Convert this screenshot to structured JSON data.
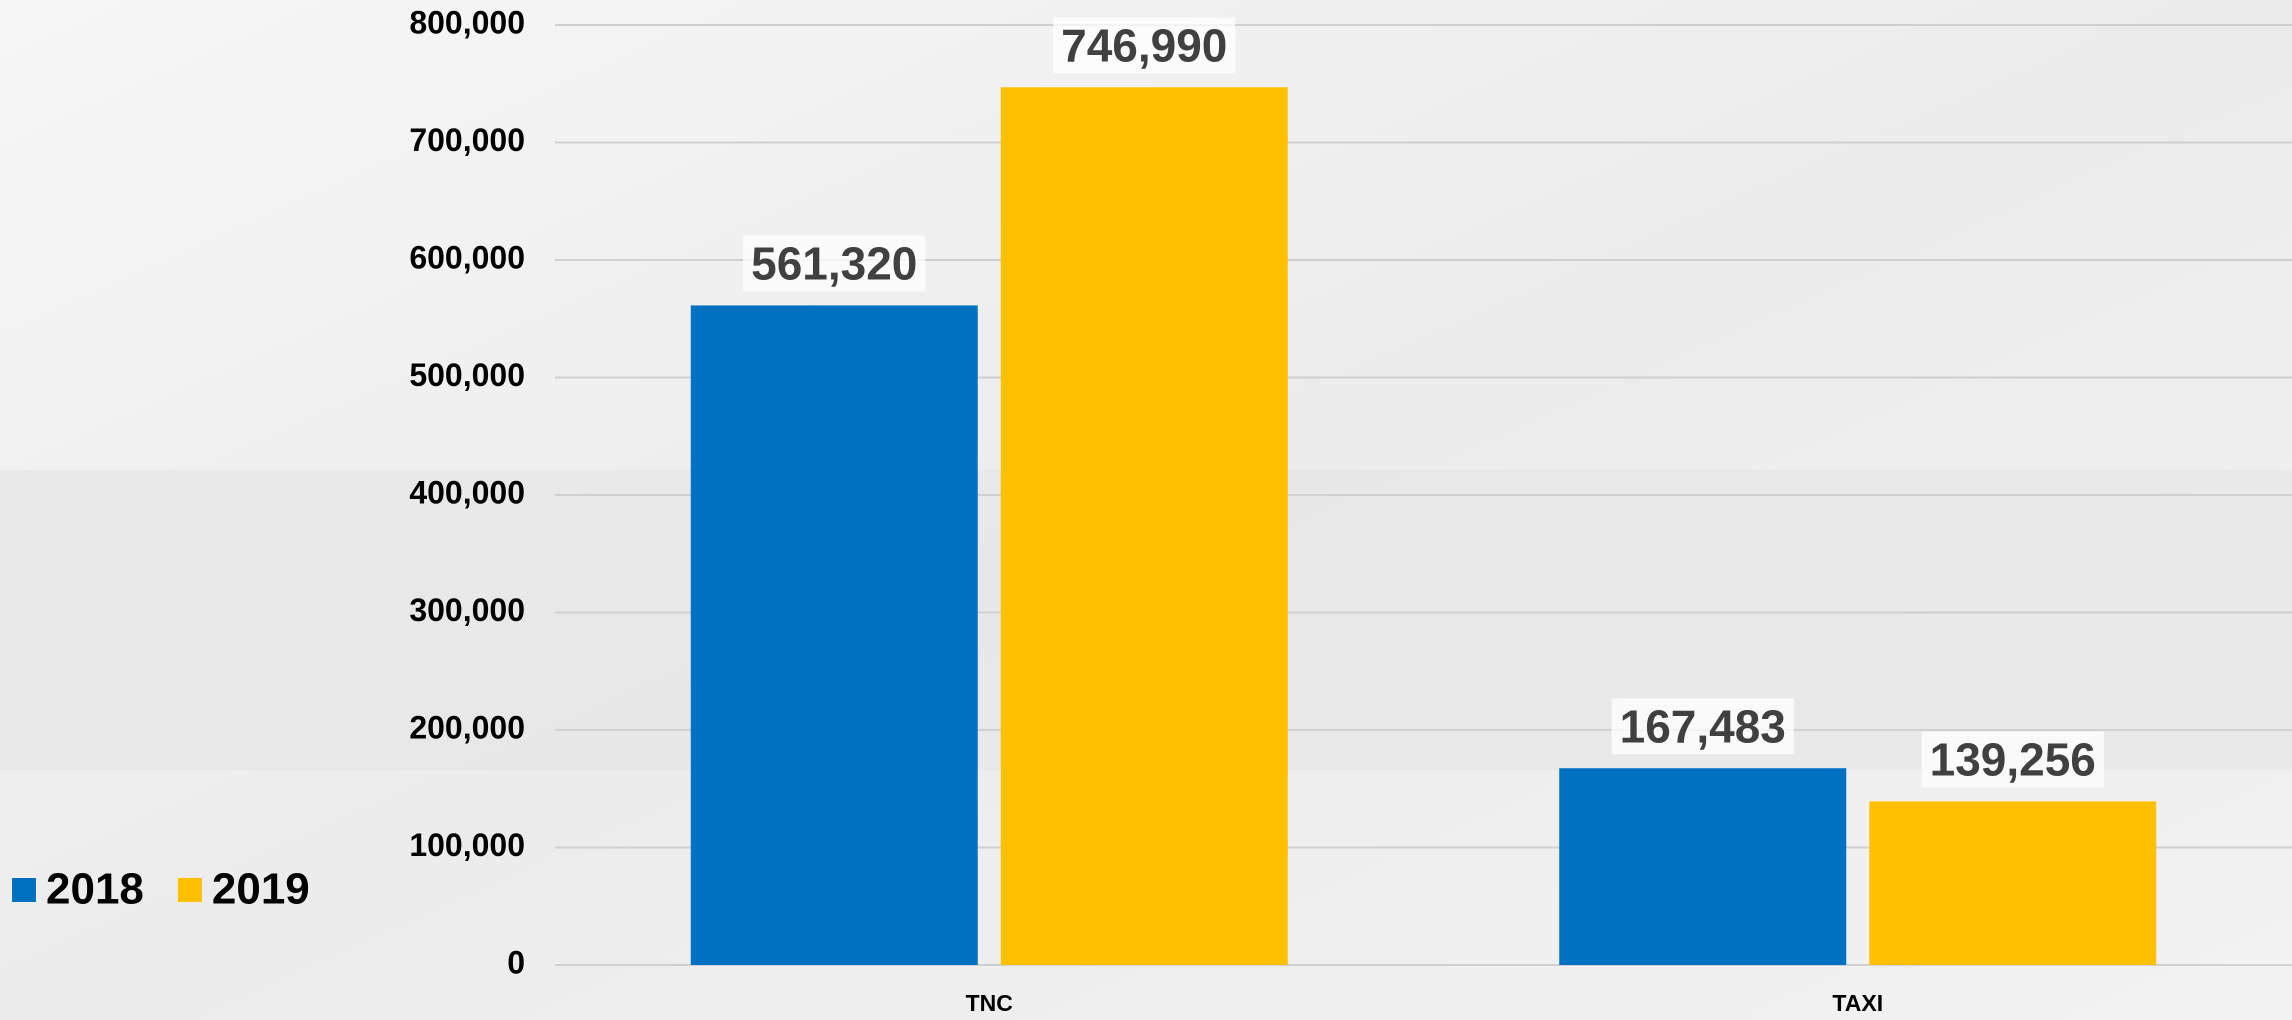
{
  "chart_data": {
    "type": "bar",
    "categories": [
      "TNC",
      "TAXI"
    ],
    "series": [
      {
        "name": "2018",
        "color": "#0070c0",
        "values": [
          561320,
          167483
        ],
        "value_labels": [
          "561,320",
          "167,483"
        ]
      },
      {
        "name": "2019",
        "color": "#ffc000",
        "values": [
          746990,
          139256
        ],
        "value_labels": [
          "746,990",
          "139,256"
        ]
      }
    ],
    "ylim": [
      0,
      800000
    ],
    "yticks": [
      0,
      {
        "value": 100000,
        "label": "100,000"
      },
      {
        "value": 200000,
        "label": "200,000"
      },
      {
        "value": 300000,
        "label": "300,000"
      },
      {
        "value": 400000,
        "label": "400,000"
      },
      {
        "value": 500000,
        "label": "500,000"
      },
      {
        "value": 600000,
        "label": "600,000"
      },
      {
        "value": 700000,
        "label": "700,000"
      },
      {
        "value": 800000,
        "label": "800,000"
      }
    ],
    "grid": true,
    "legend": "bottom-left"
  }
}
